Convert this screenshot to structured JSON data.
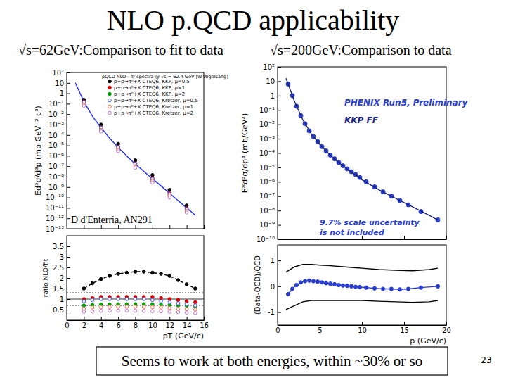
{
  "slide": {
    "title": "NLO p.QCD applicability",
    "left_heading": "√s=62GeV:Comparison to fit to data",
    "right_heading": "√s=200GeV:Comparison to data",
    "caption": "Seems to work at both energies, within ~30% or so",
    "page_number": 23
  },
  "chart_data": [
    {
      "type": "scatter",
      "title": "pQCD NLO - π⁰ spectra @ √s = 62.4 GeV [W.Vogelsang]",
      "y_label": "Ed³σ/d³p (mb GeV⁻² c³)",
      "annotation": "D d'Enterria, AN291",
      "log": "y",
      "legend": "top-right",
      "tick_labels": "y",
      "x": [
        2,
        4,
        6,
        8,
        10,
        12,
        14
      ],
      "xlim": [
        0,
        16
      ],
      "xticks": [
        0,
        2,
        4,
        6,
        8,
        10,
        12,
        14,
        16
      ],
      "ylim": [
        1e-13,
        100
      ],
      "yticks": [
        {
          "value": 1e-13,
          "label": "10⁻¹³"
        },
        {
          "value": 1e-12,
          "label": "10⁻¹²"
        },
        {
          "value": 1e-11,
          "label": "10⁻¹¹"
        },
        {
          "value": 1e-10,
          "label": "10⁻¹⁰"
        },
        {
          "value": 1e-09,
          "label": "10⁻⁹"
        },
        {
          "value": 1e-08,
          "label": "10⁻⁸"
        },
        {
          "value": 1e-07,
          "label": "10⁻⁷"
        },
        {
          "value": 1e-06,
          "label": "10⁻⁶"
        },
        {
          "value": 1e-05,
          "label": "10⁻⁵"
        },
        {
          "value": 0.0001,
          "label": "10⁻⁴"
        },
        {
          "value": 0.001,
          "label": "10⁻³"
        },
        {
          "value": 0.01,
          "label": "10⁻²"
        },
        {
          "value": 0.1,
          "label": "10⁻¹"
        },
        1,
        10,
        {
          "value": 100,
          "label": "10²"
        }
      ],
      "fit_curve": {
        "color": "#2030ff",
        "line_style": "solid",
        "marker": "none",
        "x": [
          1,
          2,
          3,
          4,
          5,
          6,
          7,
          8,
          9,
          10,
          11,
          12,
          13,
          14,
          15
        ],
        "values": [
          10,
          0.16,
          0.0063,
          0.0005,
          5e-05,
          6.3e-06,
          1e-06,
          1.6e-07,
          3.2e-08,
          6.3e-09,
          1.3e-09,
          2.5e-10,
          5e-11,
          1e-11,
          2e-12
        ]
      },
      "series": [
        {
          "name": "p+p→π⁰+X CTEQ6, KKP, μ=0.5",
          "color": "#000000",
          "marker": "circle",
          "line_style": "none",
          "values": [
            0.24,
            0.00098,
            1.4e-05,
            3.7e-07,
            1.4e-08,
            5.3e-10,
            1.7e-11
          ]
        },
        {
          "name": "p+p→π⁰+X CTEQ6, KKP, μ=1",
          "color": "#e00000",
          "marker": "circle",
          "line_style": "none",
          "values": [
            0.16,
            0.00055,
            6.9e-06,
            1.8e-07,
            6.9e-09,
            2.5e-10,
            9e-12
          ]
        },
        {
          "name": "p+p→π⁰+X CTEQ6, KKP, μ=2",
          "color": "#00a000",
          "marker": "circle",
          "line_style": "none",
          "values": [
            0.11,
            0.00038,
            4.8e-06,
            1.2e-07,
            4.7e-09,
            1.8e-10,
            6.8e-12
          ]
        },
        {
          "name": "p+p→π⁰+X CTEQ6, Kretzer, μ=0.5",
          "color": "#4060ff",
          "marker": "circle-open",
          "line_style": "none",
          "values": [
            0.14,
            0.0005,
            6.3e-06,
            1.6e-07,
            6e-09,
            2.1e-10,
            7.5e-12
          ]
        },
        {
          "name": "p+p→π⁰+X CTEQ6, Kretzer, μ=1",
          "color": "#ff6040",
          "marker": "circle-open",
          "line_style": "none",
          "values": [
            0.088,
            0.00031,
            4e-06,
            1e-07,
            3.9e-09,
            1.5e-10,
            5.2e-12
          ]
        },
        {
          "name": "p+p→π⁰+X CTEQ6, Kretzer, μ=2",
          "color": "#c070d0",
          "marker": "circle-open",
          "line_style": "none",
          "values": [
            0.064,
            0.00022,
            2.8e-06,
            7.2e-08,
            2.7e-09,
            1e-10,
            3.6e-12
          ]
        }
      ]
    },
    {
      "type": "scatter",
      "y_label": "ratio NLO/fit",
      "x_label": "pT (GeV/c)",
      "x": [
        2,
        3,
        4,
        5,
        6,
        7,
        8,
        9,
        10,
        11,
        12,
        13,
        14,
        15
      ],
      "xlim": [
        0,
        16
      ],
      "xticks": [
        0,
        2,
        4,
        6,
        8,
        10,
        12,
        14,
        16
      ],
      "ylim": [
        0,
        4
      ],
      "yticks": [
        0.5,
        1,
        1.5,
        2,
        2.5,
        3,
        3.5
      ],
      "reference_lines": [
        0.7,
        1,
        1.3
      ],
      "series": [
        {
          "color": "#000000",
          "marker": "circle",
          "line_style": "dashed",
          "values": [
            1.5,
            1.75,
            1.95,
            2.1,
            2.2,
            2.25,
            2.3,
            2.3,
            2.25,
            2.2,
            2.1,
            1.9,
            1.7,
            1.5
          ]
        },
        {
          "color": "#e00000",
          "marker": "circle",
          "line_style": "none",
          "values": [
            1.0,
            1.05,
            1.1,
            1.1,
            1.1,
            1.1,
            1.1,
            1.1,
            1.1,
            1.05,
            1.0,
            0.95,
            0.9,
            0.85
          ]
        },
        {
          "color": "#00a000",
          "marker": "circle",
          "line_style": "none",
          "values": [
            0.7,
            0.72,
            0.75,
            0.75,
            0.76,
            0.76,
            0.76,
            0.76,
            0.75,
            0.74,
            0.72,
            0.7,
            0.68,
            0.65
          ]
        },
        {
          "color": "#4060ff",
          "marker": "circle-open",
          "line_style": "none",
          "values": [
            0.9,
            0.95,
            1.0,
            1.0,
            1.0,
            1.0,
            1.0,
            1.0,
            0.95,
            0.9,
            0.85,
            0.8,
            0.75,
            0.7
          ]
        },
        {
          "color": "#ff6040",
          "marker": "circle-open",
          "line_style": "none",
          "values": [
            0.55,
            0.6,
            0.62,
            0.63,
            0.64,
            0.64,
            0.64,
            0.63,
            0.62,
            0.6,
            0.58,
            0.55,
            0.52,
            0.5
          ]
        },
        {
          "color": "#c070d0",
          "marker": "circle-open",
          "line_style": "none",
          "values": [
            0.4,
            0.42,
            0.44,
            0.45,
            0.45,
            0.45,
            0.45,
            0.44,
            0.43,
            0.42,
            0.4,
            0.38,
            0.36,
            0.34
          ]
        }
      ]
    },
    {
      "type": "scatter",
      "y_label": "E*d³σ/dp³ (mb/GeV²)",
      "annotation": [
        "9.7% scale uncertainty",
        "is not included"
      ],
      "log": "y",
      "legend": "top-right",
      "tick_labels": "y",
      "x": [
        1.25,
        1.75,
        2.25,
        2.75,
        3.25,
        3.75,
        4.25,
        4.75,
        5.25,
        5.75,
        6.25,
        6.75,
        7.25,
        7.75,
        8.25,
        8.75,
        9.25,
        9.75,
        10.5,
        11.5,
        12.5,
        13.5,
        14.5,
        15.5,
        17,
        19
      ],
      "xlim": [
        0,
        20
      ],
      "xticks": [
        0,
        5,
        10,
        15,
        20
      ],
      "ylim": [
        1e-10,
        100
      ],
      "yticks": [
        {
          "value": 1e-10,
          "label": "10⁻¹⁰"
        },
        {
          "value": 1e-09,
          "label": "10⁻⁹"
        },
        {
          "value": 1e-08,
          "label": "10⁻⁸"
        },
        {
          "value": 1e-07,
          "label": "10⁻⁷"
        },
        {
          "value": 1e-06,
          "label": "10⁻⁶"
        },
        {
          "value": 1e-05,
          "label": "10⁻⁵"
        },
        {
          "value": 0.0001,
          "label": "10⁻⁴"
        },
        {
          "value": 0.001,
          "label": "10⁻³"
        },
        {
          "value": 0.01,
          "label": "10⁻²"
        },
        {
          "value": 0.1,
          "label": "10⁻¹"
        },
        1,
        10,
        {
          "value": 100,
          "label": "10²"
        }
      ],
      "series": [
        {
          "name": "PHENIX Run5, Preliminary",
          "color": "#2a3fd0",
          "marker": "circle",
          "line_style": "none",
          "values": [
            6.3,
            1.0,
            0.18,
            0.04,
            0.011,
            0.0035,
            0.0014,
            0.00063,
            0.00028,
            0.00014,
            7.1e-05,
            4e-05,
            2.2e-05,
            1.3e-05,
            7.9e-06,
            5e-06,
            3.2e-06,
            2e-06,
            1e-06,
            4.5e-07,
            2e-07,
            1e-07,
            5e-08,
            2.5e-08,
            8.5e-09,
            2.2e-09
          ]
        },
        {
          "name": "KKP FF",
          "color": "#1a237e",
          "marker": "none",
          "line_style": "solid",
          "x": [
            1,
            1.5,
            2,
            3,
            4,
            5,
            6,
            7,
            8,
            10,
            12,
            14,
            16,
            18,
            19
          ],
          "values": [
            16,
            2.5,
            0.4,
            0.02,
            0.0022,
            0.0004,
            0.0001,
            2.8e-05,
            1e-05,
            1.4e-06,
            2.8e-07,
            7.1e-08,
            1.8e-08,
            4.5e-09,
            2.2e-09
          ]
        }
      ]
    },
    {
      "type": "scatter",
      "y_label": "(Data-QCD)/QCD",
      "x_label": "p (GeV/c)",
      "x": [
        1.25,
        1.75,
        2.25,
        2.75,
        3.25,
        3.75,
        4.25,
        4.75,
        5.25,
        5.75,
        6.25,
        6.75,
        7.25,
        7.75,
        8.25,
        8.75,
        9.25,
        9.75,
        10.5,
        11.5,
        12.5,
        13.5,
        14.5,
        15.5,
        17,
        19
      ],
      "xlim": [
        0,
        20
      ],
      "xticks": [
        0,
        5,
        10,
        15,
        20
      ],
      "ylim": [
        -1.5,
        1.6
      ],
      "yticks": [
        -1,
        0,
        1
      ],
      "series": [
        {
          "color": "#2a3fd0",
          "marker": "circle",
          "line_style": "solid",
          "values": [
            -0.3,
            -0.1,
            0.05,
            0.15,
            0.2,
            0.22,
            0.2,
            0.18,
            0.15,
            0.12,
            0.1,
            0.08,
            0.05,
            0.03,
            0.02,
            0.0,
            -0.02,
            -0.03,
            -0.05,
            -0.08,
            -0.1,
            -0.1,
            -0.12,
            -0.1,
            -0.05,
            0.0
          ]
        },
        {
          "color": "#000000",
          "marker": "none",
          "line_style": "solid",
          "x": [
            1,
            2,
            3,
            4,
            5,
            6,
            8,
            10,
            12,
            14,
            16,
            18,
            19
          ],
          "values": [
            0.55,
            0.75,
            0.85,
            0.85,
            0.82,
            0.8,
            0.75,
            0.7,
            0.65,
            0.62,
            0.6,
            0.65,
            0.7
          ]
        },
        {
          "color": "#000000",
          "marker": "none",
          "line_style": "solid",
          "x": [
            1,
            2,
            3,
            4,
            5,
            6,
            8,
            10,
            12,
            14,
            16,
            18,
            19
          ],
          "values": [
            -0.9,
            -0.75,
            -0.6,
            -0.55,
            -0.55,
            -0.55,
            -0.55,
            -0.55,
            -0.58,
            -0.6,
            -0.62,
            -0.6,
            -0.55
          ]
        }
      ]
    }
  ]
}
